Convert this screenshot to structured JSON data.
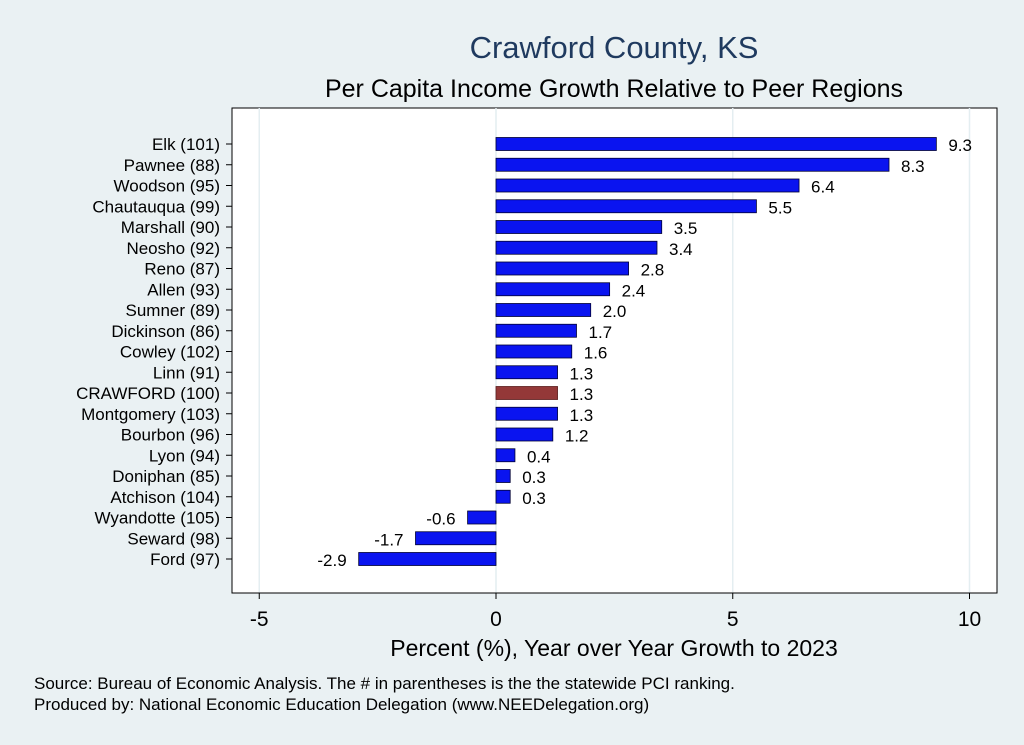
{
  "chart_data": {
    "type": "bar",
    "orientation": "horizontal",
    "title": "Crawford County, KS",
    "subtitle": "Per Capita Income Growth Relative to Peer Regions",
    "xlabel": "Percent (%), Year over Year Growth to 2023",
    "ylabel": "",
    "xlim": [
      -5,
      10
    ],
    "xticks": [
      -5,
      0,
      5,
      10
    ],
    "xtick_labels": [
      "-5",
      "0",
      "5",
      "10"
    ],
    "grid": true,
    "categories": [
      "Elk (101)",
      "Pawnee (88)",
      "Woodson (95)",
      "Chautauqua (99)",
      "Marshall (90)",
      "Neosho (92)",
      "Reno (87)",
      "Allen (93)",
      "Sumner (89)",
      "Dickinson (86)",
      "Cowley (102)",
      "Linn (91)",
      "CRAWFORD (100)",
      "Montgomery (103)",
      "Bourbon (96)",
      "Lyon (94)",
      "Doniphan (85)",
      "Atchison (104)",
      "Wyandotte (105)",
      "Seward (98)",
      "Ford (97)"
    ],
    "values": [
      9.3,
      8.3,
      6.4,
      5.5,
      3.5,
      3.4,
      2.8,
      2.4,
      2.0,
      1.7,
      1.6,
      1.3,
      1.3,
      1.3,
      1.2,
      0.4,
      0.3,
      0.3,
      -0.6,
      -1.7,
      -2.9
    ],
    "value_labels": [
      "9.3",
      "8.3",
      "6.4",
      "5.5",
      "3.5",
      "3.4",
      "2.8",
      "2.4",
      "2.0",
      "1.7",
      "1.6",
      "1.3",
      "1.3",
      "1.3",
      "1.2",
      "0.4",
      "0.3",
      "0.3",
      "-0.6",
      "-1.7",
      "-2.9"
    ],
    "highlight_category": "CRAWFORD (100)",
    "colors": {
      "bar": "#0a14f0",
      "highlight": "#943838",
      "title": "#1f3a5f",
      "background": "#eaf1f3",
      "plot_background": "#ffffff",
      "grid": "#e4eef1"
    }
  },
  "notes": {
    "source": "Source: Bureau of Economic Analysis. The # in parentheses is the the statewide PCI ranking.",
    "produced_by": "Produced by: National Economic Education Delegation (www.NEEDelegation.org)"
  }
}
